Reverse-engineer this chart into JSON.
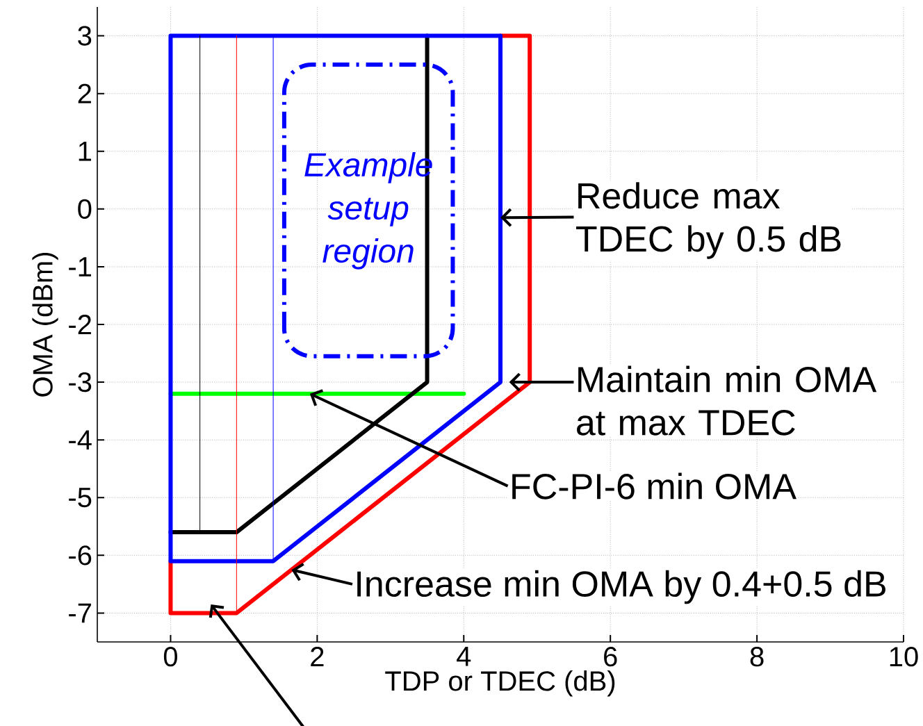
{
  "chart_data": {
    "type": "line",
    "xlabel": "TDP or TDEC (dB)",
    "ylabel": "OMA (dBm)",
    "xlim": [
      -1,
      10
    ],
    "ylim": [
      -7.5,
      3.5
    ],
    "xticks": [
      0,
      2,
      4,
      6,
      8,
      10
    ],
    "yticks": [
      -7,
      -6,
      -5,
      -4,
      -3,
      -2,
      -1,
      0,
      1,
      2,
      3
    ],
    "grid": true,
    "series": [
      {
        "color": "#00ff00",
        "x": [
          0,
          4
        ],
        "values": [
          -3.2,
          -3.2
        ]
      },
      {
        "color": "#ff0000",
        "x": [
          4.5,
          4.9,
          4.9,
          0.9,
          0,
          0
        ],
        "values": [
          3,
          3,
          -3,
          -7,
          -7,
          -6.1
        ]
      },
      {
        "color": "#000000",
        "x": [
          0,
          0.9,
          3.5,
          3.5
        ],
        "values": [
          -5.6,
          -5.6,
          -3,
          3
        ]
      },
      {
        "color": "#0000ff",
        "x": [
          0,
          0,
          4.5,
          4.5,
          1.4,
          0,
          0
        ],
        "values": [
          -6.1,
          3,
          3,
          -3,
          -6.1,
          -6.1,
          -5.6
        ]
      },
      {
        "color": "#000000",
        "x": [
          0.4,
          0.4
        ],
        "values": [
          -5.6,
          3
        ]
      },
      {
        "color": "#ff0000",
        "x": [
          0.9,
          0.9
        ],
        "values": [
          -7,
          3
        ]
      },
      {
        "color": "#0000ff",
        "x": [
          1.4,
          1.4
        ],
        "values": [
          -6.1,
          3
        ]
      }
    ],
    "annotations": [
      {
        "text": "Reduce max TDEC by 0.5 dB",
        "x": 4.5,
        "y": -0.15
      },
      "Maintain min OMA at max TDEC",
      {
        "text": "FC-PI-6 min OMA",
        "x": 1.9,
        "y": -3.2
      },
      {
        "text": "Increase min OMA by 0.4+0.5 dB",
        "x": 1.65,
        "y": -6.25
      },
      "Example setup region"
    ]
  }
}
